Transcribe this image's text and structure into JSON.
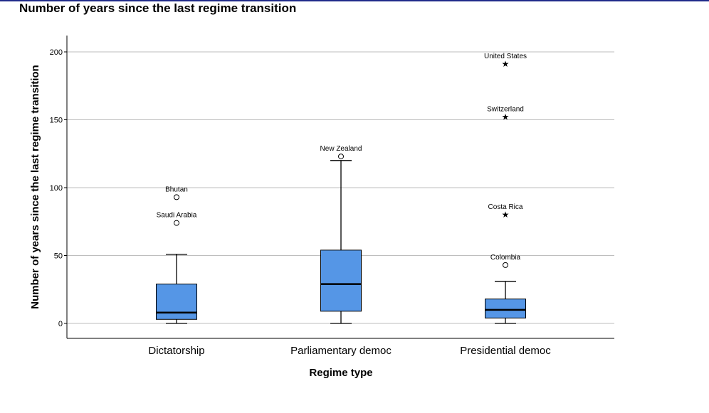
{
  "chart_data": {
    "type": "box",
    "title": "Number of years since the last regime transition",
    "xlabel": "Regime type",
    "ylabel": "Number of years since the last regime transition",
    "ylim": [
      -11,
      211
    ],
    "yticks": [
      0,
      50,
      100,
      150,
      200
    ],
    "grid": true,
    "box_color": "#5596e6",
    "categories": [
      "Dictatorship",
      "Parliamentary democ",
      "Presidential democ"
    ],
    "boxes": [
      {
        "category": "Dictatorship",
        "whisker_low": 0,
        "q1": 3,
        "median": 8,
        "q3": 29,
        "whisker_high": 51
      },
      {
        "category": "Parliamentary democ",
        "whisker_low": 0,
        "q1": 9,
        "median": 29,
        "q3": 54,
        "whisker_high": 120
      },
      {
        "category": "Presidential democ",
        "whisker_low": 0,
        "q1": 4,
        "median": 10,
        "q3": 18,
        "whisker_high": 31
      }
    ],
    "outliers": [
      {
        "category": "Dictatorship",
        "label": "Bhutan",
        "value": 93,
        "marker": "circle"
      },
      {
        "category": "Dictatorship",
        "label": "Saudi Arabia",
        "value": 74,
        "marker": "circle"
      },
      {
        "category": "Parliamentary democ",
        "label": "New Zealand",
        "value": 123,
        "marker": "circle"
      },
      {
        "category": "Presidential democ",
        "label": "United States",
        "value": 191,
        "marker": "star"
      },
      {
        "category": "Presidential democ",
        "label": "Switzerland",
        "value": 152,
        "marker": "star"
      },
      {
        "category": "Presidential democ",
        "label": "Costa Rica",
        "value": 80,
        "marker": "star"
      },
      {
        "category": "Presidential democ",
        "label": "Colombia",
        "value": 43,
        "marker": "circle"
      }
    ]
  }
}
